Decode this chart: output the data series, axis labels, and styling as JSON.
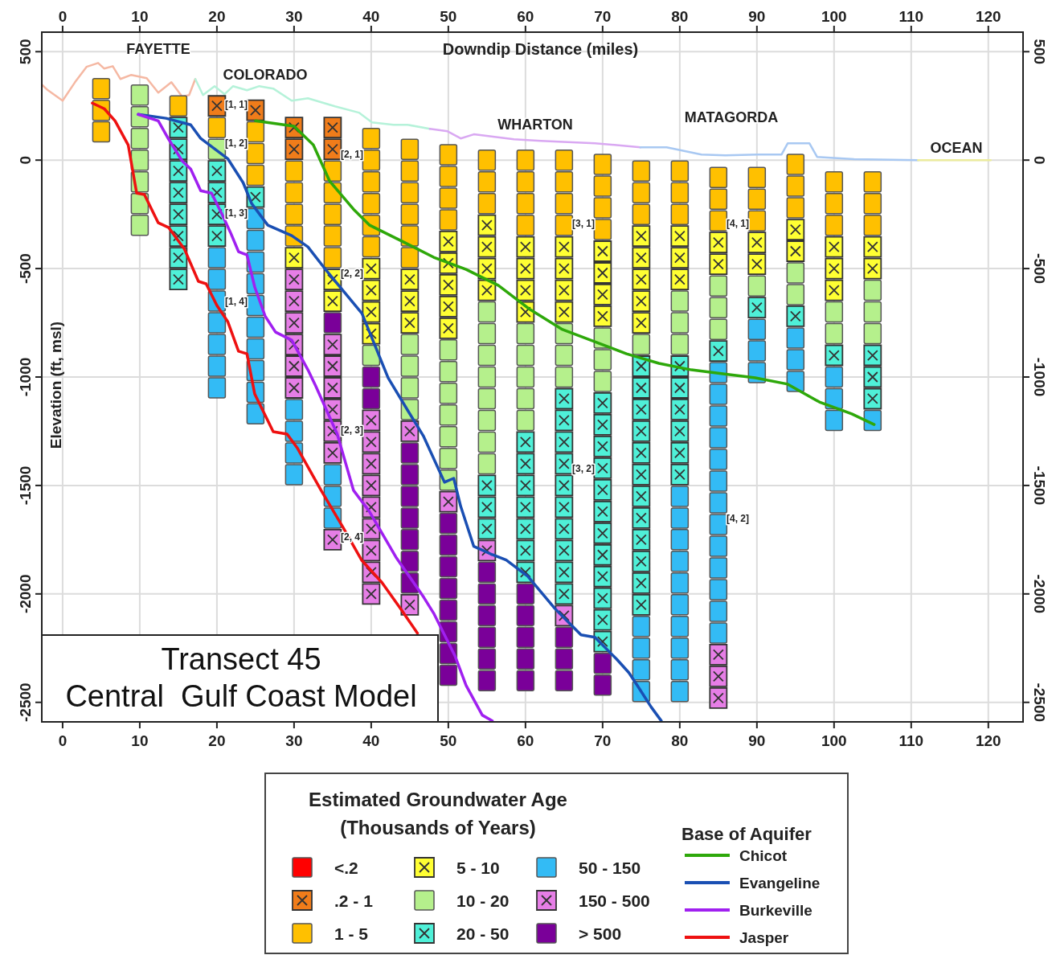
{
  "chart_data": {
    "type": "scatter",
    "xlabel": "Downdip Distance (miles)",
    "ylabel": "Elevation (ft, msl)",
    "legend_title": "Estimated Groundwater Age (Thousands of Years)",
    "legend": "bottom",
    "grid": true,
    "xlim": [
      -2.7,
      124.5
    ],
    "xticks": [
      0,
      10,
      20,
      30,
      40,
      50,
      60,
      70,
      80,
      90,
      100,
      110,
      120
    ],
    "x2lim": [
      -2.7,
      124.5
    ],
    "x2ticks": [
      0,
      10,
      20,
      30,
      40,
      50,
      60,
      70,
      80,
      90,
      100,
      110,
      120
    ],
    "ylim": [
      -2590,
      590
    ],
    "yticks": [
      500,
      0,
      -500,
      -1000,
      -1500,
      -2000,
      -2500
    ],
    "y2lim": [
      -2590,
      590
    ],
    "y2ticks": [
      500,
      0,
      -500,
      -1000,
      -1500,
      -2000,
      -2500
    ],
    "series": [
      {
        "type": "line",
        "color": "#f5b8a3",
        "x": [
          -2.7,
          -1.9,
          0,
          1.6,
          3.1,
          4.6,
          5.4,
          6.5,
          7.5,
          8.9,
          10.9,
          12.4,
          14.1,
          15.5,
          16.4,
          17.2
        ],
        "values": [
          348,
          322,
          274,
          359,
          430,
          448,
          422,
          433,
          374,
          393,
          378,
          311,
          359,
          293,
          300,
          374
        ]
      },
      {
        "type": "line",
        "color": "#b5f2d9",
        "x": [
          17.2,
          18.2,
          19.7,
          21,
          22.1,
          23.9,
          25.5,
          27.3,
          29.7,
          31.8,
          35.3,
          38.4,
          40.1,
          42.9,
          44.7,
          47.6
        ],
        "values": [
          374,
          300,
          341,
          304,
          341,
          322,
          341,
          330,
          274,
          285,
          248,
          219,
          174,
          163,
          163,
          144
        ]
      },
      {
        "type": "line",
        "color": "#d9a8f2",
        "x": [
          47.6,
          49.9,
          51.6,
          53.3,
          58.5,
          62,
          69,
          74.9
        ],
        "values": [
          144,
          133,
          100,
          119,
          96,
          89,
          78,
          59
        ]
      },
      {
        "type": "line",
        "color": "#a8c8f2",
        "x": [
          74.9,
          78.3,
          82.8,
          85.9,
          90.1,
          93.2,
          94,
          96.8,
          97.8,
          102.6,
          110.9
        ],
        "values": [
          59,
          59,
          26,
          22,
          26,
          26,
          78,
          78,
          15,
          4,
          0
        ]
      },
      {
        "type": "line",
        "color": "#ecec9e",
        "x": [
          110.9,
          120.3
        ],
        "values": [
          0,
          0
        ]
      },
      {
        "name": "<.2",
        "color": "#ff0000",
        "marker": "square"
      },
      {
        "name": ".2 - 1",
        "color": "#f07c1a",
        "marker": "cross",
        "x": [
          20,
          25,
          30,
          30,
          35,
          35
        ],
        "values": [
          250,
          230,
          150,
          50,
          150,
          50
        ]
      },
      {
        "name": "1 - 5",
        "color": "#ffc000",
        "marker": "square",
        "x": [
          5,
          5,
          5,
          15,
          20,
          25,
          25,
          25,
          30,
          30,
          30,
          30,
          35,
          35,
          35,
          35,
          35,
          40,
          40,
          40,
          40,
          40,
          40,
          45,
          45,
          45,
          45,
          45,
          45,
          50,
          50,
          50,
          50,
          55,
          55,
          55,
          60,
          60,
          60,
          60,
          65,
          65,
          65,
          65,
          70,
          70,
          70,
          70,
          75,
          75,
          75,
          80,
          80,
          80,
          85,
          85,
          85,
          90,
          90,
          90,
          95,
          95,
          95,
          100,
          100,
          100,
          105,
          105,
          105
        ],
        "values": [
          330,
          230,
          130,
          250,
          150,
          130,
          30,
          -70,
          -50,
          -150,
          -250,
          -350,
          -50,
          -150,
          -250,
          -350,
          -450,
          100,
          0,
          -100,
          -200,
          -300,
          -400,
          50,
          -50,
          -150,
          -250,
          -350,
          -450,
          25,
          -75,
          -175,
          -275,
          0,
          -100,
          -200,
          0,
          -100,
          -200,
          -300,
          0,
          -100,
          -200,
          -300,
          -20,
          -120,
          -220,
          -320,
          -50,
          -150,
          -250,
          -50,
          -150,
          -250,
          -80,
          -180,
          -280,
          -80,
          -180,
          -280,
          -20,
          -120,
          -220,
          -100,
          -200,
          -300,
          -100,
          -200,
          -300
        ]
      },
      {
        "name": "5 - 10",
        "color": "#ffff33",
        "marker": "cross",
        "x": [
          30,
          35,
          35,
          40,
          40,
          40,
          40,
          45,
          45,
          45,
          50,
          50,
          50,
          50,
          50,
          55,
          55,
          55,
          55,
          60,
          60,
          60,
          60,
          65,
          65,
          65,
          65,
          70,
          70,
          70,
          70,
          75,
          75,
          75,
          75,
          75,
          80,
          80,
          80,
          85,
          85,
          90,
          90,
          95,
          95,
          100,
          100,
          100,
          105,
          105
        ],
        "values": [
          -450,
          -550,
          -650,
          -500,
          -600,
          -700,
          -800,
          -550,
          -650,
          -750,
          -375,
          -475,
          -575,
          -675,
          -775,
          -300,
          -400,
          -500,
          -600,
          -400,
          -500,
          -600,
          -700,
          -400,
          -500,
          -600,
          -700,
          -420,
          -520,
          -620,
          -720,
          -350,
          -450,
          -550,
          -650,
          -750,
          -350,
          -450,
          -550,
          -380,
          -480,
          -380,
          -480,
          -320,
          -420,
          -400,
          -500,
          -600,
          -400,
          -500
        ]
      },
      {
        "name": "10 - 20",
        "color": "#b5f08c",
        "marker": "square",
        "x": [
          10,
          10,
          10,
          10,
          10,
          10,
          10,
          20,
          40,
          45,
          45,
          45,
          45,
          50,
          50,
          50,
          50,
          50,
          50,
          50,
          55,
          55,
          55,
          55,
          55,
          55,
          55,
          55,
          60,
          60,
          60,
          60,
          60,
          65,
          65,
          65,
          70,
          70,
          70,
          75,
          80,
          80,
          80,
          85,
          85,
          85,
          90,
          95,
          95,
          100,
          100,
          105,
          105,
          105
        ],
        "values": [
          300,
          200,
          100,
          0,
          -100,
          -200,
          -300,
          50,
          -900,
          -850,
          -950,
          -1050,
          -1150,
          -875,
          -975,
          -1075,
          -1175,
          -1275,
          -1375,
          -1475,
          -700,
          -800,
          -900,
          -1000,
          -1100,
          -1200,
          -1300,
          -1400,
          -800,
          -900,
          -1000,
          -1100,
          -1200,
          -800,
          -900,
          -1000,
          -820,
          -920,
          -1020,
          -850,
          -650,
          -750,
          -850,
          -580,
          -680,
          -780,
          -580,
          -520,
          -620,
          -700,
          -800,
          -600,
          -700,
          -800
        ]
      },
      {
        "name": "20 - 50",
        "color": "#4ff0d8",
        "marker": "cross",
        "x": [
          15,
          15,
          15,
          15,
          15,
          15,
          15,
          15,
          20,
          20,
          20,
          20,
          25,
          55,
          55,
          55,
          60,
          60,
          60,
          60,
          60,
          60,
          60,
          65,
          65,
          65,
          65,
          65,
          65,
          65,
          65,
          65,
          65,
          70,
          70,
          70,
          70,
          70,
          70,
          70,
          70,
          70,
          70,
          70,
          70,
          75,
          75,
          75,
          75,
          75,
          75,
          75,
          75,
          75,
          75,
          75,
          75,
          80,
          80,
          80,
          80,
          80,
          80,
          85,
          90,
          95,
          100,
          105,
          105,
          105
        ],
        "values": [
          150,
          50,
          -50,
          -150,
          -250,
          -350,
          -450,
          -550,
          -50,
          -150,
          -250,
          -350,
          -170,
          -1500,
          -1600,
          -1700,
          -1300,
          -1400,
          -1500,
          -1600,
          -1700,
          -1800,
          -1900,
          -1100,
          -1200,
          -1300,
          -1400,
          -1500,
          -1600,
          -1700,
          -1800,
          -1900,
          -2000,
          -1120,
          -1220,
          -1320,
          -1420,
          -1520,
          -1620,
          -1720,
          -1820,
          -1920,
          -2020,
          -2120,
          -2220,
          -950,
          -1050,
          -1150,
          -1250,
          -1350,
          -1450,
          -1550,
          -1650,
          -1750,
          -1850,
          -1950,
          -2050,
          -950,
          -1050,
          -1150,
          -1250,
          -1350,
          -1450,
          -880,
          -680,
          -720,
          -900,
          -900,
          -1000,
          -1100
        ]
      },
      {
        "name": "50 - 150",
        "color": "#33bbf5",
        "marker": "square",
        "x": [
          20,
          20,
          20,
          20,
          20,
          20,
          20,
          25,
          25,
          25,
          25,
          25,
          25,
          25,
          25,
          25,
          25,
          30,
          30,
          30,
          30,
          35,
          35,
          35,
          75,
          75,
          75,
          75,
          80,
          80,
          80,
          80,
          80,
          80,
          80,
          80,
          80,
          80,
          85,
          85,
          85,
          85,
          85,
          85,
          85,
          85,
          85,
          85,
          85,
          85,
          85,
          90,
          90,
          90,
          95,
          95,
          95,
          100,
          100,
          100,
          105
        ],
        "values": [
          -450,
          -550,
          -650,
          -750,
          -850,
          -950,
          -1050,
          -270,
          -370,
          -470,
          -570,
          -670,
          -770,
          -870,
          -970,
          -1070,
          -1170,
          -1150,
          -1250,
          -1350,
          -1450,
          -1450,
          -1550,
          -1650,
          -2150,
          -2250,
          -2350,
          -2450,
          -1550,
          -1650,
          -1750,
          -1850,
          -1950,
          -2050,
          -2150,
          -2250,
          -2350,
          -2450,
          -980,
          -1080,
          -1180,
          -1280,
          -1380,
          -1480,
          -1580,
          -1680,
          -1780,
          -1880,
          -1980,
          -2080,
          -2180,
          -780,
          -880,
          -980,
          -820,
          -920,
          -1020,
          -1000,
          -1100,
          -1200,
          -1200
        ]
      },
      {
        "name": "150 - 500",
        "color": "#e67ee6",
        "marker": "cross",
        "x": [
          30,
          30,
          30,
          30,
          30,
          30,
          35,
          35,
          35,
          35,
          35,
          35,
          35,
          40,
          40,
          40,
          40,
          40,
          40,
          40,
          40,
          40,
          45,
          45,
          50,
          55,
          65,
          85,
          85,
          85
        ],
        "values": [
          -550,
          -650,
          -750,
          -850,
          -950,
          -1050,
          -850,
          -950,
          -1050,
          -1150,
          -1250,
          -1350,
          -1750,
          -1200,
          -1300,
          -1400,
          -1500,
          -1600,
          -1700,
          -1800,
          -1900,
          -2000,
          -1250,
          -2050,
          -1575,
          -1800,
          -2100,
          -2280,
          -2380,
          -2480
        ]
      },
      {
        "name": "> 500",
        "color": "#7a0099",
        "marker": "square",
        "x": [
          35,
          40,
          40,
          45,
          45,
          45,
          45,
          45,
          45,
          45,
          50,
          50,
          50,
          50,
          50,
          50,
          50,
          50,
          55,
          55,
          55,
          55,
          55,
          55,
          60,
          60,
          60,
          60,
          60,
          65,
          65,
          65,
          70,
          70
        ],
        "values": [
          -750,
          -1000,
          -1100,
          -1350,
          -1450,
          -1550,
          -1650,
          -1750,
          -1850,
          -1950,
          -1675,
          -1775,
          -1875,
          -1975,
          -2075,
          -2175,
          -2275,
          -2375,
          -1900,
          -2000,
          -2100,
          -2200,
          -2300,
          -2400,
          -2000,
          -2100,
          -2200,
          -2300,
          -2400,
          -2200,
          -2300,
          -2400,
          -2320,
          -2420
        ]
      },
      {
        "type": "line",
        "name": "Chicot",
        "color": "#2ea80a",
        "x": [
          25,
          30,
          32.5,
          34.6,
          37.7,
          39.8,
          44,
          48.1,
          52.3,
          56.5,
          60.6,
          64.8,
          69,
          73.1,
          77.3,
          81.5,
          85.6,
          89.8,
          94,
          98.1,
          102.3,
          105.2
        ],
        "values": [
          181,
          156,
          70,
          -96,
          -226,
          -300,
          -374,
          -448,
          -504,
          -578,
          -689,
          -781,
          -837,
          -893,
          -937,
          -967,
          -985,
          -1004,
          -1033,
          -1115,
          -1170,
          -1219
        ]
      },
      {
        "type": "line",
        "name": "Evangeline",
        "color": "#1a4fb3",
        "x": [
          9.8,
          13.4,
          16.6,
          17.9,
          21.4,
          23.4,
          24.5,
          26.6,
          29.7,
          31.8,
          33.9,
          38.8,
          42.2,
          44.7,
          46.8,
          49.5,
          50.7,
          51.6,
          53.3,
          55.7,
          57.5,
          60.3,
          63.8,
          67.2,
          69,
          71.8,
          73.4,
          74.5,
          76.3,
          77.6
        ],
        "values": [
          211,
          193,
          163,
          100,
          7,
          -104,
          -200,
          -300,
          -348,
          -400,
          -496,
          -707,
          -1004,
          -1152,
          -1274,
          -1485,
          -1467,
          -1596,
          -1781,
          -1819,
          -1844,
          -1919,
          -2067,
          -2189,
          -2200,
          -2300,
          -2363,
          -2422,
          -2522,
          -2585
        ]
      },
      {
        "type": "line",
        "name": "Burkeville",
        "color": "#a020f0",
        "x": [
          9.8,
          12.4,
          13.75,
          15.5,
          16.6,
          17.9,
          19.3,
          20.7,
          21.8,
          22.8,
          23.9,
          24.9,
          26.25,
          27.6,
          29.7,
          31.8,
          32.8,
          35.6,
          37.7,
          39.8,
          43.2,
          46.8,
          48.1,
          49.5,
          50.9,
          52.3,
          54.4,
          55.7
        ],
        "values": [
          211,
          181,
          96,
          -4,
          -41,
          -141,
          -152,
          -252,
          -337,
          -422,
          -437,
          -585,
          -719,
          -793,
          -830,
          -967,
          -1041,
          -1263,
          -1522,
          -1622,
          -1830,
          -2015,
          -2089,
          -2189,
          -2289,
          -2422,
          -2559,
          -2585
        ]
      },
      {
        "type": "line",
        "name": "Jasper",
        "color": "#ee1111",
        "x": [
          3.85,
          5.4,
          6.8,
          8.5,
          9.6,
          10.6,
          12.4,
          13.75,
          15.8,
          17.6,
          18.6,
          20,
          21.4,
          22.8,
          23.9,
          24.9,
          27.3,
          29.1,
          30.4,
          33.5,
          36.4,
          38.75,
          41.4,
          44,
          46
        ],
        "values": [
          263,
          237,
          181,
          70,
          -152,
          -159,
          -289,
          -311,
          -411,
          -559,
          -570,
          -670,
          -744,
          -881,
          -893,
          -1078,
          -1252,
          -1263,
          -1326,
          -1522,
          -1696,
          -1844,
          -1948,
          -2078,
          -2181
        ]
      }
    ],
    "annotations": [
      "Transect 45",
      "Central  Gulf Coast Model",
      "Base of Aquifer",
      "FAYETTE",
      "COLORADO",
      "WHARTON",
      "MATAGORDA",
      "OCEAN",
      "[1, 1]",
      "[1, 2]",
      "[1, 3]",
      "[1, 4]",
      "[2, 1]",
      "[2, 2]",
      "[2, 3]",
      "[2, 4]",
      "[3, 1]",
      "[3, 2]",
      "[4, 1]",
      "[4, 2]"
    ]
  }
}
